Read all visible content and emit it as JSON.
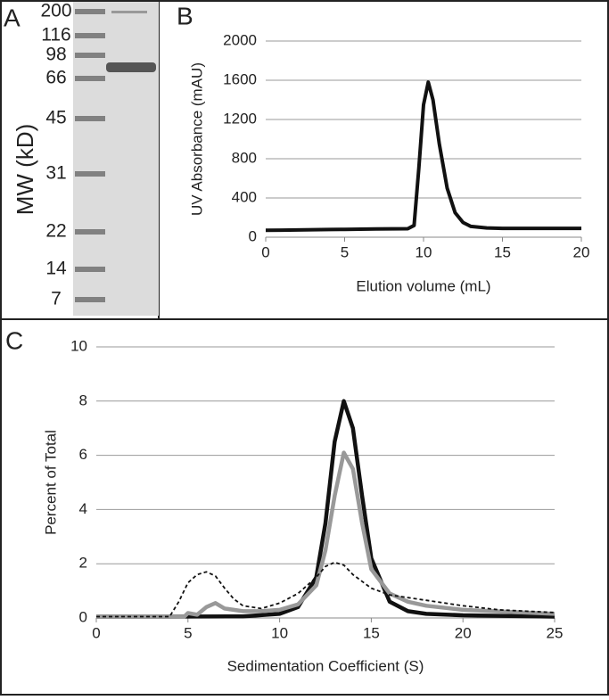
{
  "gel": {
    "panel_label": "A",
    "axis_label": "MW (kD)",
    "markers": [
      "200",
      "116",
      "98",
      "66",
      "45",
      "31",
      "22",
      "14",
      "7"
    ]
  },
  "chart_data": [
    {
      "type": "line",
      "panel_label": "B",
      "x_label": "Elution volume (mL)",
      "y_label": "UV Absorbance (mAU)",
      "xlim": [
        0,
        20
      ],
      "xticks": [
        0,
        5,
        10,
        15,
        20
      ],
      "ylim": [
        0,
        2000
      ],
      "yticks": [
        0,
        400,
        800,
        1200,
        1600,
        2000
      ],
      "grid": true,
      "series": [
        {
          "color": "#111111",
          "width": 4,
          "dash": false,
          "x": [
            0,
            1,
            2,
            3,
            4,
            5,
            6,
            7,
            8,
            9,
            9.4,
            9.7,
            10,
            10.3,
            10.6,
            11,
            11.5,
            12,
            12.5,
            13,
            14,
            15,
            16,
            17,
            18,
            19,
            20
          ],
          "values": [
            70,
            72,
            74,
            76,
            78,
            80,
            82,
            84,
            85,
            86,
            120,
            700,
            1350,
            1580,
            1400,
            950,
            500,
            250,
            150,
            110,
            95,
            90,
            90,
            90,
            90,
            90,
            90
          ]
        }
      ]
    },
    {
      "type": "line",
      "panel_label": "C",
      "x_label": "Sedimentation Coefficient (S)",
      "y_label": "Percent of Total",
      "xlim": [
        0,
        25
      ],
      "xticks": [
        0,
        5,
        10,
        15,
        20,
        25
      ],
      "ylim": [
        0,
        10
      ],
      "yticks": [
        0,
        2,
        4,
        6,
        8,
        10
      ],
      "grid": true,
      "series": [
        {
          "color": "#111111",
          "width": 4.5,
          "dash": false,
          "x": [
            0,
            4,
            8,
            10,
            11,
            12,
            12.5,
            13,
            13.5,
            14,
            14.5,
            15,
            16,
            17,
            18,
            20,
            25
          ],
          "values": [
            0.05,
            0.05,
            0.06,
            0.15,
            0.4,
            1.5,
            3.5,
            6.5,
            8,
            7,
            4.5,
            2.2,
            0.6,
            0.25,
            0.15,
            0.1,
            0.05
          ]
        },
        {
          "color": "#999999",
          "width": 4.5,
          "dash": false,
          "x": [
            0,
            4.8,
            5,
            5.5,
            6,
            6.5,
            7,
            8,
            9,
            10,
            11,
            12,
            12.5,
            13,
            13.5,
            14,
            14.5,
            15,
            16,
            17,
            18,
            20,
            25
          ],
          "values": [
            0.05,
            0.05,
            0.18,
            0.12,
            0.4,
            0.55,
            0.35,
            0.25,
            0.25,
            0.3,
            0.5,
            1.2,
            2.5,
            4.5,
            6.1,
            5.5,
            3.5,
            1.8,
            0.9,
            0.6,
            0.45,
            0.3,
            0.15
          ]
        },
        {
          "color": "#111111",
          "width": 1.8,
          "dash": true,
          "x": [
            0,
            4,
            4.5,
            5,
            5.5,
            6,
            6.5,
            7,
            7.5,
            8,
            9,
            10,
            11,
            12,
            12.5,
            13,
            13.5,
            14,
            15,
            16,
            17,
            18,
            20,
            22,
            25
          ],
          "values": [
            0.05,
            0.05,
            0.6,
            1.3,
            1.6,
            1.7,
            1.55,
            1.1,
            0.7,
            0.45,
            0.35,
            0.55,
            0.9,
            1.5,
            1.9,
            2.05,
            1.95,
            1.6,
            1.1,
            0.85,
            0.75,
            0.65,
            0.45,
            0.3,
            0.2
          ]
        }
      ]
    }
  ]
}
